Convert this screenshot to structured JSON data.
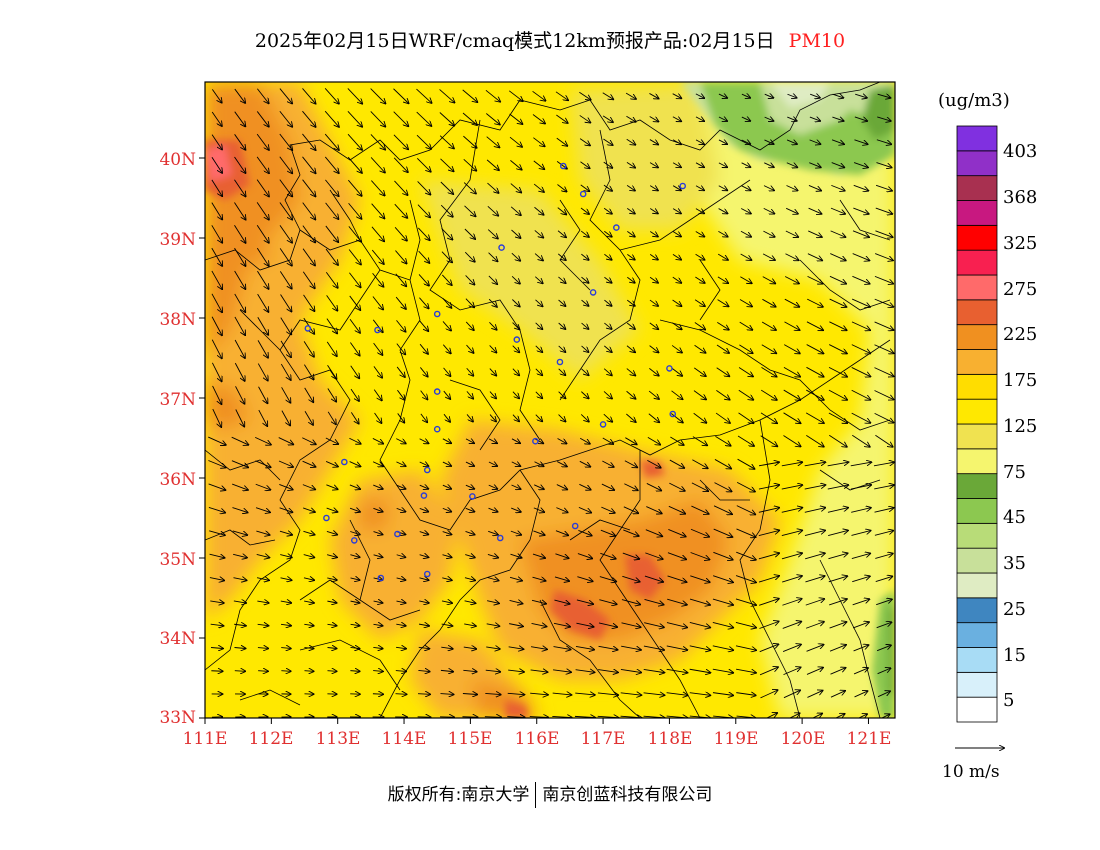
{
  "title": {
    "text": "2025年02月15日WRF/cmaq模式12km预报产品:02月15日",
    "variable": "PM10"
  },
  "axes": {
    "lat_labels": [
      "40N",
      "39N",
      "38N",
      "37N",
      "36N",
      "35N",
      "34N",
      "33N"
    ],
    "lat_values": [
      40,
      39,
      38,
      37,
      36,
      35,
      34,
      33
    ],
    "lon_labels": [
      "111E",
      "112E",
      "113E",
      "114E",
      "115E",
      "116E",
      "117E",
      "118E",
      "119E",
      "120E",
      "121E"
    ],
    "lon_values": [
      111,
      112,
      113,
      114,
      115,
      116,
      117,
      118,
      119,
      120,
      121
    ],
    "lon_range": [
      111,
      121.4
    ],
    "lat_range": [
      33,
      40.95
    ]
  },
  "colorbar": {
    "unit": "(ug/m3)",
    "colors": [
      "#ffffff",
      "#d8f0fa",
      "#a8dcf5",
      "#6ab0e0",
      "#3f86c0",
      "#dfecc3",
      "#c8e09a",
      "#b8dc78",
      "#8cc850",
      "#6aa838",
      "#f5f56e",
      "#f0e250",
      "#ffe800",
      "#ffdd00",
      "#f8b030",
      "#f09020",
      "#e86030",
      "#ff6a6a",
      "#f82050",
      "#ff0000",
      "#c81880",
      "#a83050",
      "#9030c8",
      "#8030e0"
    ],
    "labels": [
      "5",
      "15",
      "25",
      "35",
      "45",
      "75",
      "125",
      "175",
      "225",
      "275",
      "325",
      "368",
      "403"
    ]
  },
  "stations": [
    [
      116.4,
      39.9
    ],
    [
      116.7,
      39.55
    ],
    [
      117.2,
      39.13
    ],
    [
      118.2,
      39.65
    ],
    [
      115.47,
      38.88
    ],
    [
      116.85,
      38.32
    ],
    [
      114.5,
      38.05
    ],
    [
      113.6,
      37.85
    ],
    [
      112.55,
      37.87
    ],
    [
      115.7,
      37.73
    ],
    [
      116.35,
      37.45
    ],
    [
      118.0,
      37.37
    ],
    [
      118.05,
      36.8
    ],
    [
      117.0,
      36.67
    ],
    [
      114.5,
      37.08
    ],
    [
      114.5,
      36.61
    ],
    [
      115.98,
      36.46
    ],
    [
      114.35,
      36.1
    ],
    [
      113.1,
      36.2
    ],
    [
      114.3,
      35.78
    ],
    [
      115.03,
      35.77
    ],
    [
      113.9,
      35.3
    ],
    [
      113.25,
      35.22
    ],
    [
      112.83,
      35.5
    ],
    [
      115.45,
      35.25
    ],
    [
      116.58,
      35.4
    ],
    [
      114.35,
      34.8
    ],
    [
      113.65,
      34.75
    ]
  ],
  "wind_reference": {
    "label": "10 m/s",
    "speed": 10
  },
  "footer": {
    "left": "版权所有:南京大学",
    "right": "南京创蓝科技有限公司"
  }
}
